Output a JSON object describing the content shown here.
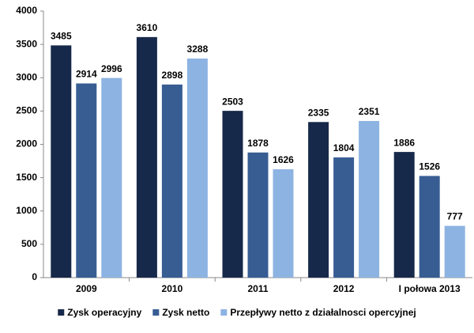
{
  "chart_data": {
    "type": "bar",
    "categories": [
      "2009",
      "2010",
      "2011",
      "2012",
      "I połowa 2013"
    ],
    "series": [
      {
        "name": "Zysk operacyjny",
        "color": "#17294a",
        "values": [
          3485,
          3610,
          2503,
          2335,
          1886
        ]
      },
      {
        "name": "Zysk netto",
        "color": "#385d93",
        "values": [
          2914,
          2898,
          1878,
          1804,
          1526
        ]
      },
      {
        "name": "Przepływy netto z działalnosci opercyjnej",
        "color": "#8db3e2",
        "values": [
          2996,
          3288,
          1626,
          2351,
          777
        ]
      }
    ],
    "ylim": [
      0,
      4000
    ],
    "yticks": [
      0,
      500,
      1000,
      1500,
      2000,
      2500,
      3000,
      3500,
      4000
    ],
    "grid": false,
    "legend": "bottom"
  }
}
